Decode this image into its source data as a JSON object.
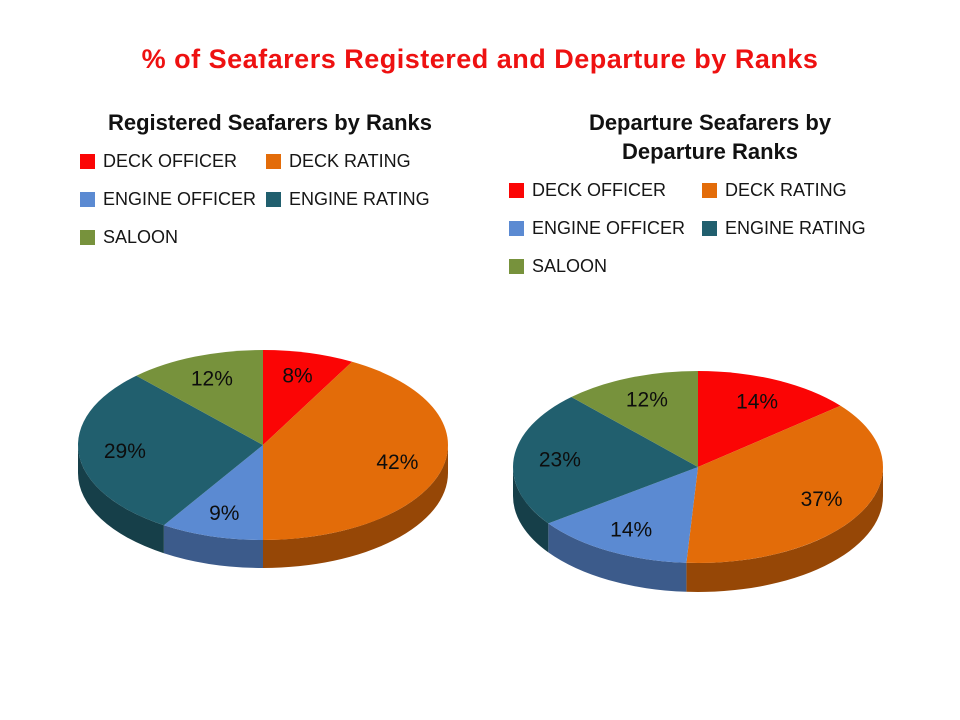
{
  "page": {
    "background": "#FFFFFF",
    "title": "% of Seafarers Registered and Departure by Ranks",
    "title_color": "#EE1111"
  },
  "chart_data": [
    {
      "type": "pie",
      "style": "3d",
      "title": "Registered Seafarers by Ranks",
      "title_lines": [
        "Registered Seafarers by Ranks"
      ],
      "categories": [
        "DECK OFFICER",
        "DECK RATING",
        "ENGINE OFFICER",
        "ENGINE RATING",
        "SALOON"
      ],
      "values": [
        8,
        42,
        9,
        29,
        12
      ],
      "data_labels": [
        "8%",
        "42%",
        "9%",
        "29%",
        "12%"
      ],
      "colors": [
        "#FB0505",
        "#E36C09",
        "#5B8AD2",
        "#215F6E",
        "#77923C"
      ],
      "legend_position": "top",
      "start_angle_deg": 0,
      "direction": "clockwise"
    },
    {
      "type": "pie",
      "style": "3d",
      "title": "Departure Seafarers by Departure Ranks",
      "title_lines": [
        "Departure Seafarers by",
        "Departure Ranks"
      ],
      "categories": [
        "DECK OFFICER",
        "DECK RATING",
        "ENGINE OFFICER",
        "ENGINE RATING",
        "SALOON"
      ],
      "values": [
        14,
        37,
        14,
        23,
        12
      ],
      "data_labels": [
        "14%",
        "37%",
        "14%",
        "23%",
        "12%"
      ],
      "colors": [
        "#FB0505",
        "#E36C09",
        "#5B8AD2",
        "#215F6E",
        "#77923C"
      ],
      "legend_position": "top",
      "start_angle_deg": 0,
      "direction": "clockwise"
    }
  ]
}
